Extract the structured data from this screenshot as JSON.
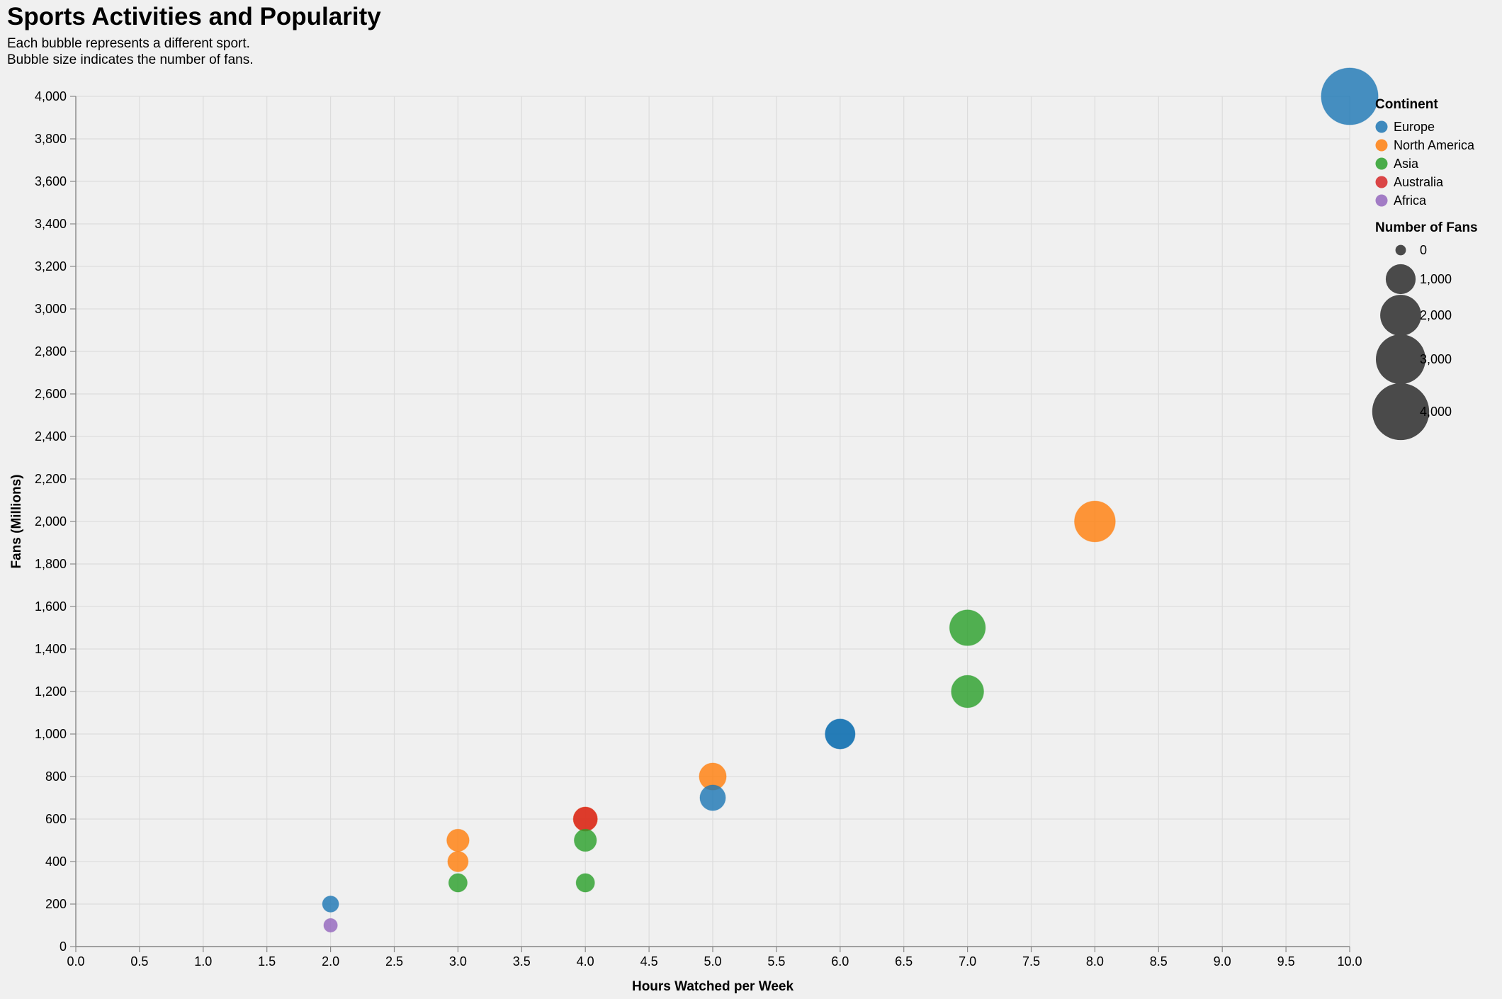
{
  "chart_data": {
    "type": "scatter",
    "title": "Sports Activities and Popularity",
    "subtitle": [
      "Each bubble represents a different sport.",
      "Bubble size indicates the number of fans."
    ],
    "xlabel": "Hours Watched per Week",
    "ylabel": "Fans (Millions)",
    "xlim": [
      0,
      10
    ],
    "ylim": [
      0,
      4000
    ],
    "x_ticks": [
      "0.0",
      "0.5",
      "1.0",
      "1.5",
      "2.0",
      "2.5",
      "3.0",
      "3.5",
      "4.0",
      "4.5",
      "5.0",
      "5.5",
      "6.0",
      "6.5",
      "7.0",
      "7.5",
      "8.0",
      "8.5",
      "9.0",
      "9.5",
      "10.0"
    ],
    "y_ticks": [
      "0",
      "200",
      "400",
      "600",
      "800",
      "1,000",
      "1,200",
      "1,400",
      "1,600",
      "1,800",
      "2,000",
      "2,200",
      "2,400",
      "2,600",
      "2,800",
      "3,000",
      "3,200",
      "3,400",
      "3,600",
      "3,800",
      "4,000"
    ],
    "grid": true,
    "legend_position": "right",
    "color_legend": {
      "title": "Continent",
      "entries": [
        {
          "name": "Europe",
          "color": "#1f77b4"
        },
        {
          "name": "North America",
          "color": "#ff7f0e"
        },
        {
          "name": "Asia",
          "color": "#2ca02c"
        },
        {
          "name": "Australia",
          "color": "#d62728"
        },
        {
          "name": "Africa",
          "color": "#9467bd"
        }
      ]
    },
    "size_legend": {
      "title": "Number of Fans",
      "entries": [
        {
          "label": "0",
          "value": 0
        },
        {
          "label": "1,000",
          "value": 1000
        },
        {
          "label": "2,000",
          "value": 2000
        },
        {
          "label": "3,000",
          "value": 3000
        },
        {
          "label": "4,000",
          "value": 4000
        }
      ]
    },
    "points": [
      {
        "x": 10,
        "y": 4000,
        "continent": "Europe"
      },
      {
        "x": 8,
        "y": 2000,
        "continent": "North America"
      },
      {
        "x": 7,
        "y": 1500,
        "continent": "Asia"
      },
      {
        "x": 7,
        "y": 1200,
        "continent": "Asia"
      },
      {
        "x": 6,
        "y": 1000,
        "continent": "Europe"
      },
      {
        "x": 6,
        "y": 1000,
        "continent": "Europe"
      },
      {
        "x": 5,
        "y": 800,
        "continent": "North America"
      },
      {
        "x": 5,
        "y": 700,
        "continent": "Europe"
      },
      {
        "x": 4,
        "y": 600,
        "continent": "North America"
      },
      {
        "x": 4,
        "y": 600,
        "continent": "Australia"
      },
      {
        "x": 4,
        "y": 500,
        "continent": "Asia"
      },
      {
        "x": 4,
        "y": 300,
        "continent": "Asia"
      },
      {
        "x": 3,
        "y": 500,
        "continent": "North America"
      },
      {
        "x": 3,
        "y": 400,
        "continent": "North America"
      },
      {
        "x": 3,
        "y": 300,
        "continent": "Asia"
      },
      {
        "x": 2,
        "y": 200,
        "continent": "Europe"
      },
      {
        "x": 2,
        "y": 100,
        "continent": "Africa"
      }
    ]
  }
}
